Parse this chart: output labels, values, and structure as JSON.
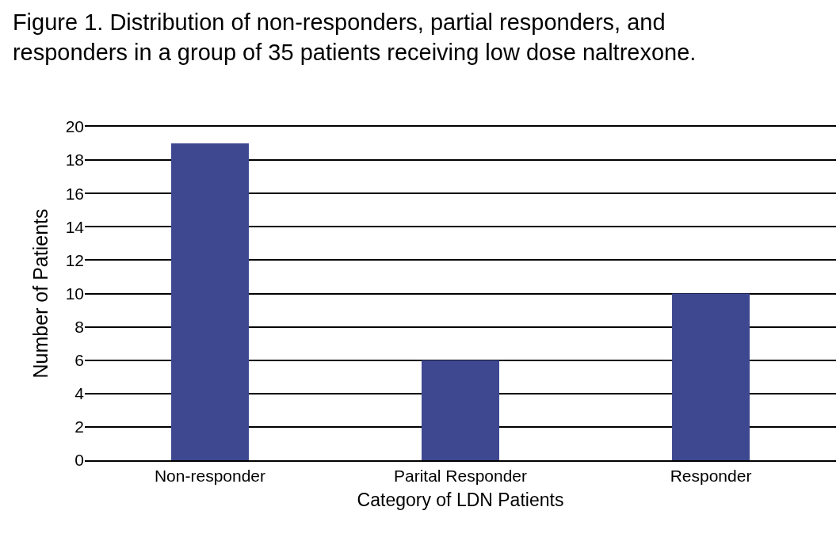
{
  "chart_data": {
    "type": "bar",
    "title": "Figure 1. Distribution of non-responders, partial responders, and\nresponders in a group of 35 patients receiving low dose naltrexone.",
    "xlabel": "Category of LDN Patients",
    "ylabel": "Number of Patients",
    "categories": [
      "Non-responder",
      "Parital Responder",
      "Responder"
    ],
    "values": [
      19,
      6,
      10
    ],
    "color": "#3d4891",
    "ylim": [
      0,
      20
    ],
    "yticks": [
      0,
      2,
      4,
      6,
      8,
      10,
      12,
      14,
      16,
      18,
      20
    ],
    "grid": "y"
  }
}
